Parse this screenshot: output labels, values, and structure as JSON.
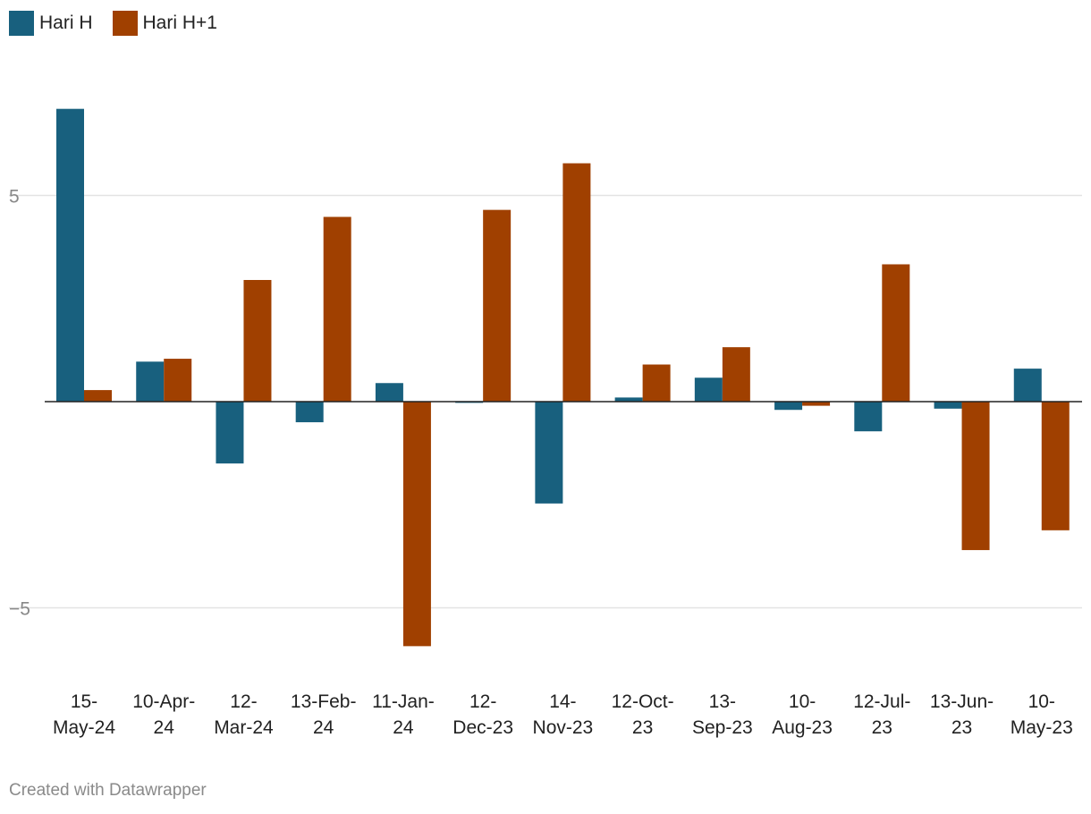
{
  "legend": [
    {
      "label": "Hari H",
      "color": "#18607e"
    },
    {
      "label": "Hari H+1",
      "color": "#a04000"
    }
  ],
  "footer": "Created with Datawrapper",
  "chart_data": {
    "type": "bar",
    "categories": [
      "15-May-24",
      "10-Apr-24",
      "12-Mar-24",
      "13-Feb-24",
      "11-Jan-24",
      "12-Dec-23",
      "14-Nov-23",
      "12-Oct-23",
      "13-Sep-23",
      "10-Aug-23",
      "12-Jul-23",
      "13-Jun-23",
      "10-May-23"
    ],
    "category_label_lines": [
      [
        "15-",
        "May-24"
      ],
      [
        "10-Apr-",
        "24"
      ],
      [
        "12-",
        "Mar-24"
      ],
      [
        "13-Feb-",
        "24"
      ],
      [
        "11-Jan-",
        "24"
      ],
      [
        "12-",
        "Dec-23"
      ],
      [
        "14-",
        "Nov-23"
      ],
      [
        "12-Oct-",
        "23"
      ],
      [
        "13-",
        "Sep-23"
      ],
      [
        "10-",
        "Aug-23"
      ],
      [
        "12-Jul-",
        "23"
      ],
      [
        "13-Jun-",
        "23"
      ],
      [
        "10-",
        "May-23"
      ]
    ],
    "series": [
      {
        "name": "Hari H",
        "color": "#18607e",
        "values": [
          7.1,
          0.97,
          -1.5,
          -0.5,
          0.45,
          -0.03,
          -2.47,
          0.1,
          0.58,
          -0.2,
          -0.72,
          -0.17,
          0.8
        ]
      },
      {
        "name": "Hari H+1",
        "color": "#a04000",
        "values": [
          0.28,
          1.04,
          2.95,
          4.48,
          -5.93,
          4.65,
          5.78,
          0.9,
          1.32,
          -0.1,
          3.33,
          -3.6,
          -3.12
        ]
      }
    ],
    "yticks": [
      5,
      0,
      -5
    ],
    "ytick_labels": [
      "5",
      "",
      "−5"
    ],
    "ylim": [
      -6.7,
      8.4
    ],
    "grid": true,
    "legend_position": "top-left"
  }
}
